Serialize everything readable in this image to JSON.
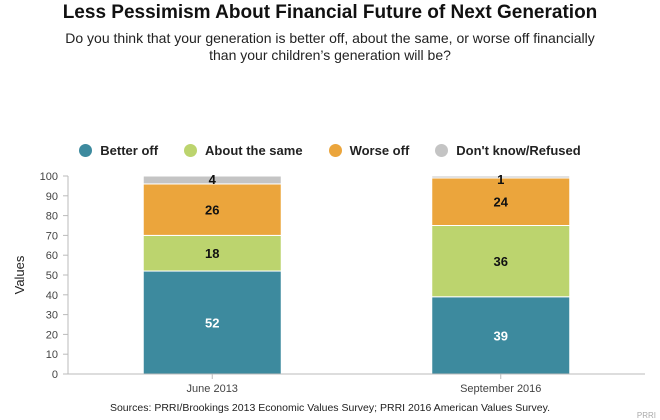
{
  "title": "Less Pessimism About Financial Future of Next Generation",
  "subtitle": "Do you think that your generation is better off, about the same, or worse off financially than your children’s generation will be?",
  "source": "Sources: PRRI/Brookings 2013 Economic Values Survey; PRRI 2016 American Values Survey.",
  "credit": "PRRI",
  "chart_data": {
    "type": "bar",
    "stacked": true,
    "categories": [
      "June 2013",
      "September 2016"
    ],
    "series": [
      {
        "name": "Better off",
        "values": [
          52,
          39
        ],
        "color": "#3d8a9e",
        "label_color": "#ffffff"
      },
      {
        "name": "About the same",
        "values": [
          18,
          36
        ],
        "color": "#bcd46e",
        "label_color": "#111111"
      },
      {
        "name": "Worse off",
        "values": [
          26,
          24
        ],
        "color": "#eba53c",
        "label_color": "#111111"
      },
      {
        "name": "Don't know/Refused",
        "values": [
          4,
          1
        ],
        "color": "#c4c4c4",
        "label_color": "#111111"
      }
    ],
    "ylabel": "Values",
    "ylim": [
      0,
      100
    ],
    "yticks": [
      0,
      10,
      20,
      30,
      40,
      50,
      60,
      70,
      80,
      90,
      100
    ],
    "legend_position": "top",
    "grid": false
  }
}
